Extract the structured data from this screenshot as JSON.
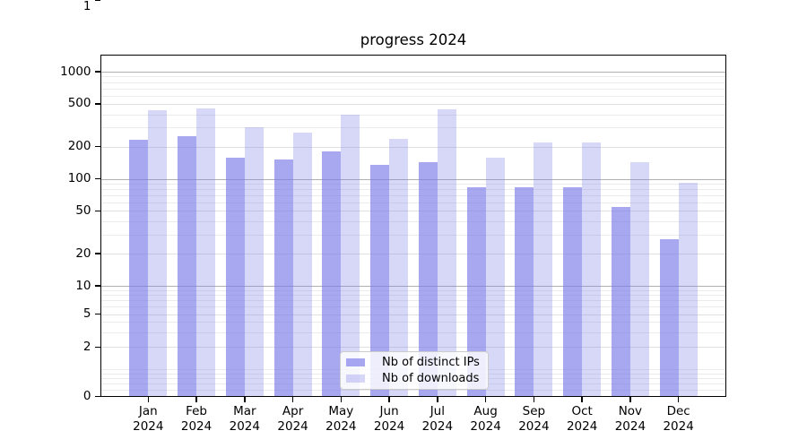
{
  "title": "progress 2024",
  "chart_data": {
    "type": "bar",
    "title": "progress 2024",
    "categories": [
      "Jan 2024",
      "Feb 2024",
      "Mar 2024",
      "Apr 2024",
      "May 2024",
      "Jun 2024",
      "Jul 2024",
      "Aug 2024",
      "Sep 2024",
      "Oct 2024",
      "Nov 2024",
      "Dec 2024"
    ],
    "series": [
      {
        "name": "Nb of distinct IPs",
        "color": "#7b7be9",
        "alpha": 0.66,
        "values": [
          232,
          252,
          156,
          150,
          180,
          135,
          142,
          84,
          84,
          84,
          54,
          27
        ]
      },
      {
        "name": "Nb of downloads",
        "color": "#7b7be9",
        "alpha": 0.3,
        "values": [
          436,
          457,
          303,
          270,
          395,
          236,
          446,
          158,
          220,
          220,
          144,
          91
        ]
      }
    ],
    "yscale": "symlog",
    "yticks": [
      0,
      1,
      2,
      5,
      10,
      20,
      50,
      100,
      200,
      500,
      1000
    ],
    "ylim": [
      0,
      1430
    ],
    "xlabel": "",
    "ylabel": "",
    "grid": true,
    "legend_position": "lower center"
  },
  "legend": {
    "items": [
      {
        "label": "Nb of distinct IPs"
      },
      {
        "label": "Nb of downloads"
      }
    ]
  },
  "colors": {
    "background": "#ffffff",
    "bar_base": "#7b7be9",
    "grid_major": "#b0b0b0",
    "grid_labeled": "#e0e0e0",
    "grid_minor": "#ebebeb",
    "axis": "#000000",
    "legend_border": "#cccccc"
  }
}
